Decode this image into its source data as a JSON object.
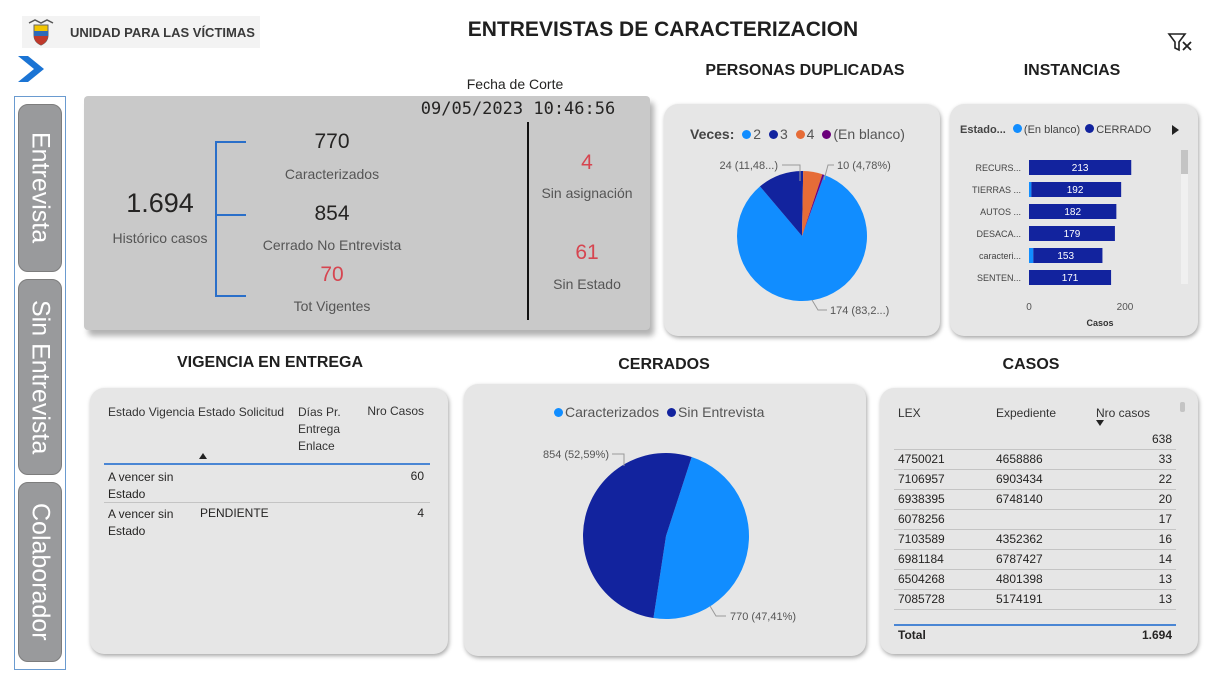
{
  "header": {
    "org_name": "UNIDAD PARA LAS VÍCTIMAS",
    "title": "ENTREVISTAS DE CARACTERIZACION"
  },
  "nav": {
    "items": [
      "Entrevista",
      "Sin Entrevista",
      "Colaborador"
    ]
  },
  "kpis": {
    "fecha_label": "Fecha de Corte",
    "fecha_value": "09/05/2023 10:46:56",
    "historico_value": "1.694",
    "historico_label": "Histórico casos",
    "caracterizados_value": "770",
    "caracterizados_label": "Caracterizados",
    "cerrado_value": "854",
    "cerrado_label": "Cerrado No Entrevista",
    "vigentes_value": "70",
    "vigentes_label": "Tot Vigentes",
    "sin_asignacion_value": "4",
    "sin_asignacion_label": "Sin asignación",
    "sin_estado_value": "61",
    "sin_estado_label": "Sin Estado"
  },
  "sections": {
    "duplicadas": "PERSONAS DUPLICADAS",
    "instancias": "INSTANCIAS",
    "vigencia": "VIGENCIA EN ENTREGA",
    "cerrados": "CERRADOS",
    "casos": "CASOS"
  },
  "vigencia_table": {
    "headers": [
      "Estado Vigencia",
      "Estado Solicitud",
      "Días Pr. Entrega Enlace",
      "Nro Casos"
    ],
    "rows": [
      {
        "estado_vigencia": "A vencer sin Estado",
        "estado_solicitud": "",
        "dias": "",
        "nro": "60"
      },
      {
        "estado_vigencia": "A vencer sin Estado",
        "estado_solicitud": "PENDIENTE",
        "dias": "",
        "nro": "4"
      }
    ]
  },
  "casos_table": {
    "headers": [
      "LEX",
      "Expediente",
      "Nro casos"
    ],
    "rows": [
      {
        "lex": "",
        "exp": "",
        "nro": "638"
      },
      {
        "lex": "4750021",
        "exp": "4658886",
        "nro": "33"
      },
      {
        "lex": "7106957",
        "exp": "6903434",
        "nro": "22"
      },
      {
        "lex": "6938395",
        "exp": "6748140",
        "nro": "20"
      },
      {
        "lex": "6078256",
        "exp": "",
        "nro": "17"
      },
      {
        "lex": "7103589",
        "exp": "4352362",
        "nro": "16"
      },
      {
        "lex": "6981184",
        "exp": "6787427",
        "nro": "14"
      },
      {
        "lex": "6504268",
        "exp": "4801398",
        "nro": "13"
      },
      {
        "lex": "7085728",
        "exp": "5174191",
        "nro": "13"
      }
    ],
    "total_label": "Total",
    "total_value": "1.694"
  },
  "colors": {
    "light_blue": "#118dff",
    "dark_blue": "#12239e",
    "orange": "#e66c37",
    "purple": "#6b007b",
    "red_kpi": "#d64550"
  },
  "chart_data": [
    {
      "type": "pie",
      "id": "duplicadas",
      "legend_title": "Veces:",
      "legend": [
        "2",
        "3",
        "4",
        "(En blanco)"
      ],
      "values": [
        174,
        24,
        10,
        1
      ],
      "colors": [
        "#118dff",
        "#12239e",
        "#e66c37",
        "#6b007b"
      ],
      "data_labels": [
        "174 (83,2...)",
        "24 (11,48...)",
        "10 (4,78%)",
        ""
      ]
    },
    {
      "type": "bar",
      "id": "instancias",
      "orientation": "horizontal",
      "legend_title": "Estado...",
      "legend": [
        "(En blanco)",
        "CERRADO"
      ],
      "categories": [
        "RECURS...",
        "TIERRAS ...",
        "AUTOS ...",
        "DESACA...",
        "caracteri...",
        "SENTEN..."
      ],
      "series": [
        {
          "name": "(En blanco)",
          "values": [
            0,
            5,
            0,
            0,
            9,
            0
          ]
        },
        {
          "name": "CERRADO",
          "values": [
            213,
            187,
            182,
            179,
            144,
            171
          ]
        }
      ],
      "totals": [
        "213",
        "192",
        "182",
        "179",
        "153",
        "171"
      ],
      "xlabel": "Casos",
      "xticks": [
        "0",
        "200"
      ],
      "xlim": [
        0,
        250
      ]
    },
    {
      "type": "pie",
      "id": "cerrados",
      "legend": [
        "Caracterizados",
        "Sin Entrevista"
      ],
      "values": [
        770,
        854
      ],
      "colors": [
        "#118dff",
        "#12239e"
      ],
      "data_labels": [
        "770 (47,41%)",
        "854 (52,59%)"
      ]
    }
  ]
}
